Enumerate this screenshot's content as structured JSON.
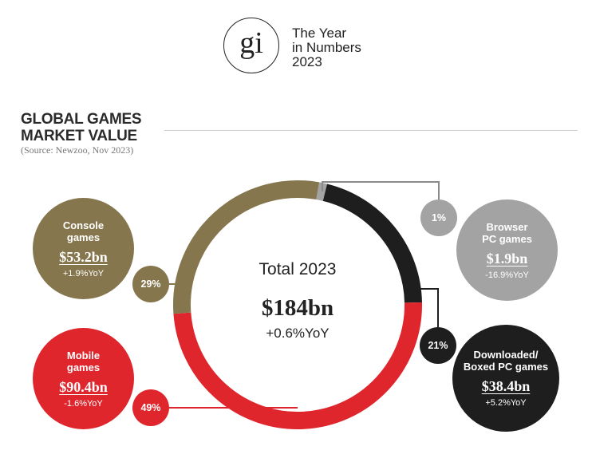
{
  "brand": {
    "monogram": "gi",
    "line1": "The Year",
    "line2": "in Numbers",
    "line3": "2023"
  },
  "heading": {
    "line1": "GLOBAL GAMES",
    "line2": "MARKET VALUE",
    "source": "(Source: Newzoo, Nov 2023)"
  },
  "center": {
    "title": "Total 2023",
    "total": "$184bn",
    "yoy": "+0.6%YoY"
  },
  "colors": {
    "console": "#85764d",
    "mobile": "#e0262d",
    "downloaded": "#1e1e1e",
    "browser": "#a3a3a3",
    "connector": "#8a8a8a"
  },
  "chart_data": {
    "type": "pie",
    "title": "GLOBAL GAMES MARKET VALUE",
    "subtitle": "(Source: Newzoo, Nov 2023)",
    "unit": "$bn",
    "total": 184,
    "total_yoy_percent": 0.6,
    "segments": [
      {
        "key": "console",
        "name_line1": "Console",
        "name_line2": "games",
        "value": 53.2,
        "value_label": "$53.2bn",
        "share": 29,
        "share_label": "29%",
        "yoy": 1.9,
        "yoy_label": "+1.9%YoY"
      },
      {
        "key": "mobile",
        "name_line1": "Mobile",
        "name_line2": "games",
        "value": 90.4,
        "value_label": "$90.4bn",
        "share": 49,
        "share_label": "49%",
        "yoy": -1.6,
        "yoy_label": "-1.6%YoY"
      },
      {
        "key": "downloaded",
        "name_line1": "Downloaded/",
        "name_line2": "Boxed PC games",
        "value": 38.4,
        "value_label": "$38.4bn",
        "share": 21,
        "share_label": "21%",
        "yoy": 5.2,
        "yoy_label": "+5.2%YoY"
      },
      {
        "key": "browser",
        "name_line1": "Browser",
        "name_line2": "PC games",
        "value": 1.9,
        "value_label": "$1.9bn",
        "share": 1,
        "share_label": "1%",
        "yoy": -16.9,
        "yoy_label": "-16.9%YoY"
      }
    ]
  }
}
